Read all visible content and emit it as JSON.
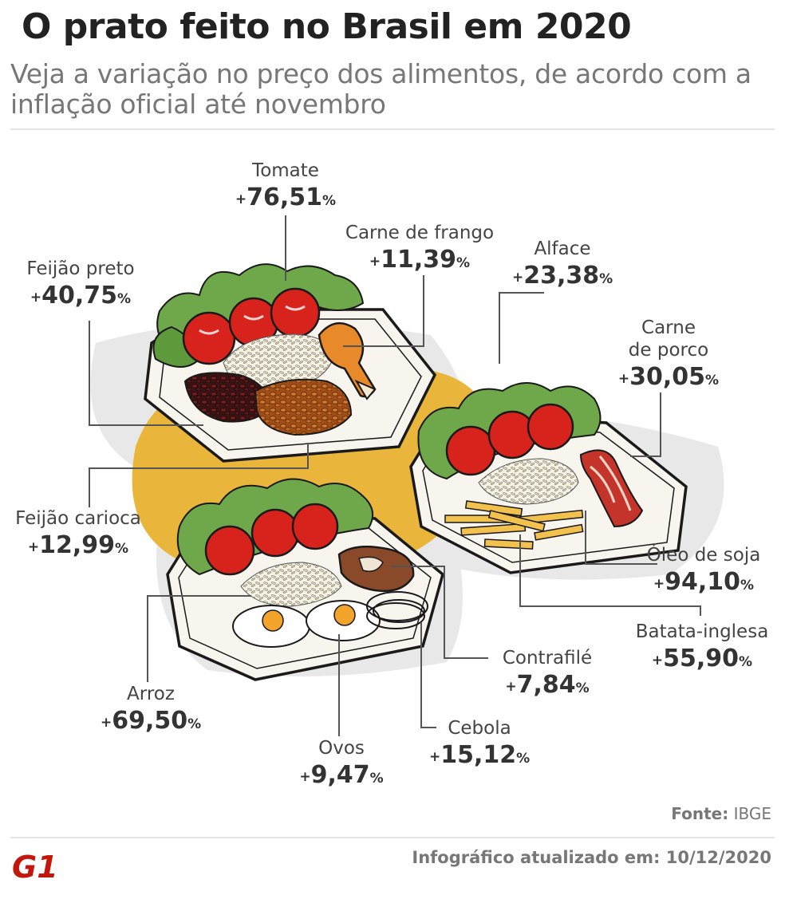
{
  "header": {
    "title": "O prato feito no Brasil em 2020",
    "subtitle": "Veja a variação no preço dos alimentos, de acordo com a inflação oficial até novembro"
  },
  "items": [
    {
      "name": "Tomate",
      "prefix": "+",
      "value": "76,51",
      "unit": "%"
    },
    {
      "name": "Carne de frango",
      "prefix": "+",
      "value": "11,39",
      "unit": "%"
    },
    {
      "name": "Alface",
      "prefix": "+",
      "value": "23,38",
      "unit": "%"
    },
    {
      "name": "Feijão preto",
      "prefix": "+",
      "value": "40,75",
      "unit": "%"
    },
    {
      "name": "Carne\nde porco",
      "prefix": "+",
      "value": "30,05",
      "unit": "%"
    },
    {
      "name": "Feijão carioca",
      "prefix": "+",
      "value": "12,99",
      "unit": "%"
    },
    {
      "name": "Óleo de soja",
      "prefix": "+",
      "value": "94,10",
      "unit": "%"
    },
    {
      "name": "Batata-inglesa",
      "prefix": "+",
      "value": "55,90",
      "unit": "%"
    },
    {
      "name": "Contrafilé",
      "prefix": "+",
      "value": "7,84",
      "unit": "%"
    },
    {
      "name": "Arroz",
      "prefix": "+",
      "value": "69,50",
      "unit": "%"
    },
    {
      "name": "Cebola",
      "prefix": "+",
      "value": "15,12",
      "unit": "%"
    },
    {
      "name": "Ovos",
      "prefix": "+",
      "value": "9,47",
      "unit": "%"
    }
  ],
  "footer": {
    "source_label": "Fonte:",
    "source_value": "IBGE",
    "updated": "Infográfico atualizado em: 10/12/2020",
    "logo_text": "G1"
  },
  "colors": {
    "brand_red": "#c4170c",
    "yellow_blob": "#e9b53a",
    "tomato": "#d8231d",
    "lettuce": "#6fa84a"
  }
}
